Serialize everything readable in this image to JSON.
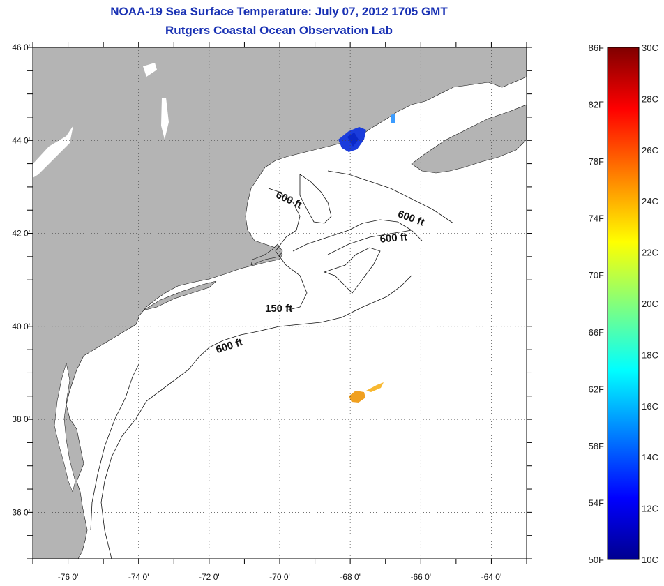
{
  "header": {
    "title": "NOAA-19 Sea Surface Temperature:  July 07, 2012 1705 GMT",
    "subtitle": "Rutgers Coastal Ocean Observation Lab"
  },
  "map": {
    "lon_range": [
      -77,
      -63
    ],
    "lat_range": [
      35,
      46
    ],
    "lon_ticks": [
      "-76 0'",
      "-74 0'",
      "-72 0'",
      "-70 0'",
      "-68 0'",
      "-66 0'",
      "-64 0'"
    ],
    "lat_ticks": [
      "46 0'",
      "44 0'",
      "42 0'",
      "40 0'",
      "38 0'",
      "36 0'"
    ],
    "contour_labels": [
      "600 ft",
      "600 ft",
      "600 ft",
      "150 ft",
      "600 ft"
    ],
    "colors": {
      "land": "#b4b4b4",
      "water": "#ffffff"
    }
  },
  "colorbar": {
    "f_labels": [
      "86F",
      "82F",
      "78F",
      "74F",
      "70F",
      "66F",
      "62F",
      "58F",
      "54F",
      "50F"
    ],
    "c_labels": [
      "30C",
      "28C",
      "26C",
      "24C",
      "22C",
      "20C",
      "18C",
      "16C",
      "14C",
      "12C",
      "10C"
    ],
    "colors": [
      "#00008f",
      "#0000ff",
      "#00ffff",
      "#ffff00",
      "#ff8000",
      "#ff0000",
      "#800000"
    ]
  }
}
